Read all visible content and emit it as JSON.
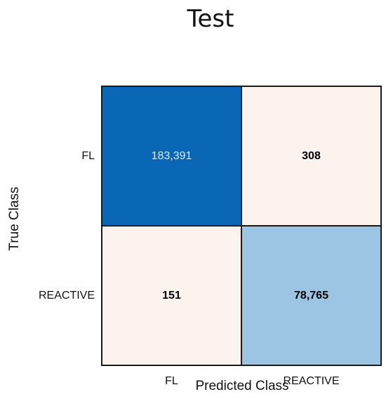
{
  "chart_data": {
    "type": "heatmap",
    "title": "Test",
    "xlabel": "Predicted Class",
    "ylabel": "True Class",
    "x_categories": [
      "FL",
      "REACTIVE"
    ],
    "y_categories": [
      "FL",
      "REACTIVE"
    ],
    "values": [
      [
        183391,
        308
      ],
      [
        151,
        78765
      ]
    ],
    "value_labels": [
      [
        "183,391",
        "308"
      ],
      [
        "151",
        "78,765"
      ]
    ],
    "colors": {
      "high": "#0a67b5",
      "mid": "#8bbde0",
      "low": "#fcf3ef",
      "grid": "#1a1a1a",
      "text_dark": "#000000",
      "text_light": "#d6e9f8"
    },
    "grid": true,
    "legend": "none"
  }
}
